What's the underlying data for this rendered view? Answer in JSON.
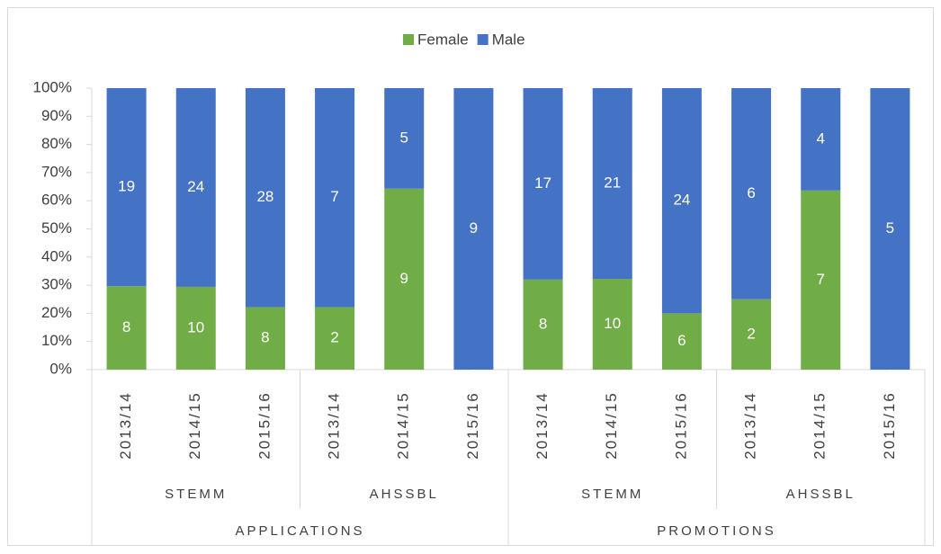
{
  "chart_data": {
    "type": "bar",
    "stack": "percent",
    "categories": [
      "2013/14",
      "2014/15",
      "2015/16",
      "2013/14",
      "2014/15",
      "2015/16",
      "2013/14",
      "2014/15",
      "2015/16",
      "2013/14",
      "2014/15",
      "2015/16"
    ],
    "level2": [
      "STEMM",
      "AHSSBL",
      "STEMM",
      "AHSSBL"
    ],
    "level3": [
      "APPLICATIONS",
      "PROMOTIONS"
    ],
    "series": [
      {
        "name": "Female",
        "color": "#70ad47",
        "values": [
          8,
          10,
          8,
          2,
          9,
          0,
          8,
          10,
          6,
          2,
          7,
          0
        ]
      },
      {
        "name": "Male",
        "color": "#4472c4",
        "values": [
          19,
          24,
          28,
          7,
          5,
          9,
          17,
          21,
          24,
          6,
          4,
          5
        ]
      }
    ],
    "ylim": [
      0,
      100
    ],
    "yticks": [
      {
        "value": 0,
        "label": "0%"
      },
      {
        "value": 10,
        "label": "10%"
      },
      {
        "value": 20,
        "label": "20%"
      },
      {
        "value": 30,
        "label": "30%"
      },
      {
        "value": 40,
        "label": "40%"
      },
      {
        "value": 50,
        "label": "50%"
      },
      {
        "value": 60,
        "label": "60%"
      },
      {
        "value": 70,
        "label": "70%"
      },
      {
        "value": 80,
        "label": "80%"
      },
      {
        "value": 90,
        "label": "90%"
      },
      {
        "value": 100,
        "label": "100%"
      }
    ],
    "legend": "top"
  }
}
